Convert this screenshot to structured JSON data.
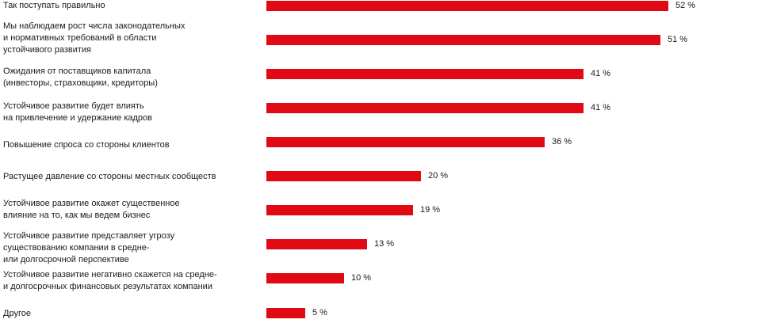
{
  "chart_data": {
    "type": "bar",
    "orientation": "horizontal",
    "bar_color": "#e00914",
    "value_suffix": " %",
    "xlim": [
      0,
      52
    ],
    "categories": [
      "Так поступать правильно",
      "Мы наблюдаем рост числа законодательных\nи нормативных требований в области\nустойчивого развития",
      "Ожидания от поставщиков капитала\n(инвесторы, страховщики, кредиторы)",
      "Устойчивое развитие будет влиять\nна привлечение и удержание кадров",
      "Повышение спроса со стороны клиентов",
      "Растущее давление со стороны местных сообществ",
      "Устойчивое развитие окажет существенное\nвлияние на то, как мы ведем бизнес",
      "Устойчивое развитие представляет угрозу\nсуществованию компании в средне-\nили долгосрочной перспективе",
      "Устойчивое развитие негативно скажется на средне-\nи долгосрочных финансовых результатах компании",
      "Другое"
    ],
    "values": [
      52,
      51,
      41,
      41,
      36,
      20,
      19,
      13,
      10,
      5
    ],
    "value_labels": [
      "52 %",
      "51 %",
      "41 %",
      "41 %",
      "36 %",
      "20 %",
      "19 %",
      "13 %",
      "10 %",
      "5 %"
    ]
  }
}
